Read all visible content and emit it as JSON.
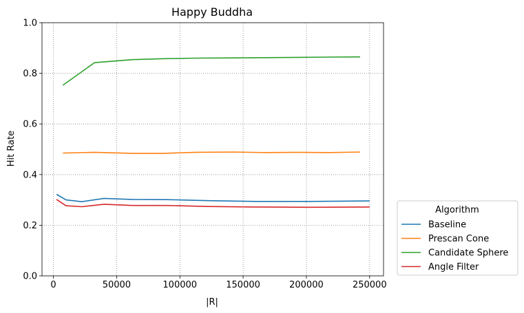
{
  "chart_data": {
    "type": "line",
    "title": "Happy Buddha",
    "xlabel": "|R|",
    "ylabel": "Hit Rate",
    "xlim": [
      -9000,
      261000
    ],
    "ylim": [
      0,
      1
    ],
    "xticks": [
      0,
      50000,
      100000,
      150000,
      200000,
      250000
    ],
    "xtick_labels": [
      "0",
      "50000",
      "100000",
      "150000",
      "200000",
      "250000"
    ],
    "yticks": [
      0.0,
      0.2,
      0.4,
      0.6,
      0.8,
      1.0
    ],
    "ytick_labels": [
      "0.0",
      "0.2",
      "0.4",
      "0.6",
      "0.8",
      "1.0"
    ],
    "grid": true,
    "legend": {
      "title": "Algorithm",
      "placement": "outside right, bottom"
    },
    "series": [
      {
        "name": "Baseline",
        "color": "#1f77b4",
        "x": [
          2500,
          10000,
          22500,
          40000,
          62500,
          90000,
          122500,
          160000,
          202500,
          250000
        ],
        "y": [
          0.322,
          0.3,
          0.293,
          0.306,
          0.302,
          0.301,
          0.297,
          0.294,
          0.294,
          0.296
        ]
      },
      {
        "name": "Prescan Cone",
        "color": "#ff7f0e",
        "x": [
          7500,
          32500,
          62500,
          87500,
          112500,
          142500,
          167500,
          192500,
          217500,
          242500
        ],
        "y": [
          0.485,
          0.488,
          0.484,
          0.484,
          0.488,
          0.489,
          0.487,
          0.488,
          0.487,
          0.489
        ]
      },
      {
        "name": "Candidate Sphere",
        "color": "#2ca02c",
        "x": [
          7500,
          32500,
          62500,
          87500,
          112500,
          142500,
          167500,
          192500,
          217500,
          242500
        ],
        "y": [
          0.753,
          0.842,
          0.854,
          0.858,
          0.86,
          0.861,
          0.862,
          0.863,
          0.864,
          0.865
        ]
      },
      {
        "name": "Angle Filter",
        "color": "#d62728",
        "x": [
          2500,
          10000,
          22500,
          40000,
          62500,
          90000,
          122500,
          160000,
          202500,
          250000
        ],
        "y": [
          0.302,
          0.277,
          0.273,
          0.283,
          0.278,
          0.278,
          0.274,
          0.272,
          0.271,
          0.272
        ]
      }
    ]
  }
}
